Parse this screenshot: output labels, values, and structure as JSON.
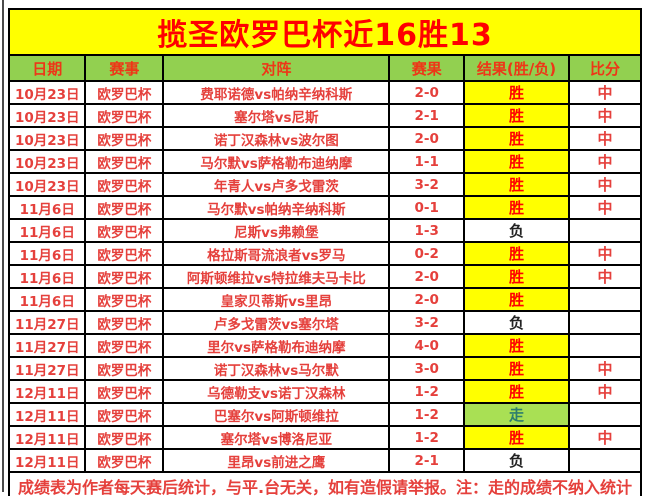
{
  "title": "揽圣欧罗巴杯近16胜13",
  "table": {
    "columns": [
      "日期",
      "赛事",
      "对阵",
      "赛果",
      "结果(胜/负)",
      "比分"
    ],
    "rows": [
      {
        "date": "10月23日",
        "league": "欧罗巴杯",
        "match": "费耶诺德vs帕纳辛纳科斯",
        "score": "2-0",
        "result": "胜",
        "verdict": "中"
      },
      {
        "date": "10月23日",
        "league": "欧罗巴杯",
        "match": "塞尔塔vs尼斯",
        "score": "2-1",
        "result": "胜",
        "verdict": "中"
      },
      {
        "date": "10月23日",
        "league": "欧罗巴杯",
        "match": "诺丁汉森林vs波尔图",
        "score": "2-0",
        "result": "胜",
        "verdict": "中"
      },
      {
        "date": "10月23日",
        "league": "欧罗巴杯",
        "match": "马尔默vs萨格勒布迪纳摩",
        "score": "1-1",
        "result": "胜",
        "verdict": "中"
      },
      {
        "date": "10月23日",
        "league": "欧罗巴杯",
        "match": "年青人vs卢多戈雷茨",
        "score": "3-2",
        "result": "胜",
        "verdict": "中"
      },
      {
        "date": "11月6日",
        "league": "欧罗巴杯",
        "match": "马尔默vs帕纳辛纳科斯",
        "score": "0-1",
        "result": "胜",
        "verdict": "中"
      },
      {
        "date": "11月6日",
        "league": "欧罗巴杯",
        "match": "尼斯vs弗赖堡",
        "score": "1-3",
        "result": "负",
        "verdict": ""
      },
      {
        "date": "11月6日",
        "league": "欧罗巴杯",
        "match": "格拉斯哥流浪者vs罗马",
        "score": "0-2",
        "result": "胜",
        "verdict": "中"
      },
      {
        "date": "11月6日",
        "league": "欧罗巴杯",
        "match": "阿斯顿维拉vs特拉维夫马卡比",
        "score": "2-0",
        "result": "胜",
        "verdict": "中"
      },
      {
        "date": "11月6日",
        "league": "欧罗巴杯",
        "match": "皇家贝蒂斯vs里昂",
        "score": "2-0",
        "result": "胜",
        "verdict": ""
      },
      {
        "date": "11月27日",
        "league": "欧罗巴杯",
        "match": "卢多戈雷茨vs塞尔塔",
        "score": "3-2",
        "result": "负",
        "verdict": ""
      },
      {
        "date": "11月27日",
        "league": "欧罗巴杯",
        "match": "里尔vs萨格勒布迪纳摩",
        "score": "4-0",
        "result": "胜",
        "verdict": ""
      },
      {
        "date": "11月27日",
        "league": "欧罗巴杯",
        "match": "诺丁汉森林vs马尔默",
        "score": "3-0",
        "result": "胜",
        "verdict": "中"
      },
      {
        "date": "12月11日",
        "league": "欧罗巴杯",
        "match": "乌德勒支vs诺丁汉森林",
        "score": "1-2",
        "result": "胜",
        "verdict": "中"
      },
      {
        "date": "12月11日",
        "league": "欧罗巴杯",
        "match": "巴塞尔vs阿斯顿维拉",
        "score": "1-2",
        "result": "走",
        "verdict": ""
      },
      {
        "date": "12月11日",
        "league": "欧罗巴杯",
        "match": "塞尔塔vs博洛尼亚",
        "score": "1-2",
        "result": "胜",
        "verdict": "中"
      },
      {
        "date": "12月11日",
        "league": "欧罗巴杯",
        "match": "里昂vs前进之鹰",
        "score": "2-1",
        "result": "负",
        "verdict": ""
      }
    ]
  },
  "footer": "成绩表为作者每天赛后统计，与平.台无关，如有造假请举报。注：走的成绩不纳入统计",
  "colors": {
    "title_background": "#ffff00",
    "title_text": "#ff0000",
    "header_background": "#92d050",
    "body_text_red": "#e5403c",
    "win_background": "#ffff00",
    "loss_text": "#222222",
    "push_background": "#a9e054",
    "push_text": "#2c7d6e",
    "border": "#000000"
  }
}
